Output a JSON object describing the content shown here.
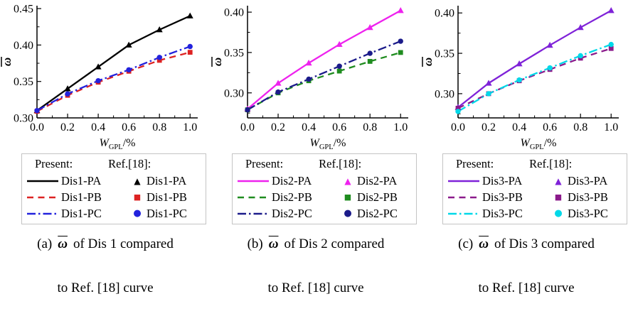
{
  "chart_data": [
    {
      "type": "line",
      "panel": "a",
      "x": [
        0.0,
        0.2,
        0.4,
        0.6,
        0.8,
        1.0
      ],
      "series": [
        {
          "name": "Dis1-PA",
          "values": [
            0.31,
            0.34,
            0.37,
            0.4,
            0.421,
            0.44
          ],
          "color": "#000000",
          "style": "solid",
          "marker": "triangle"
        },
        {
          "name": "Dis1-PB",
          "values": [
            0.309,
            0.331,
            0.349,
            0.364,
            0.379,
            0.39
          ],
          "color": "#dd2222",
          "style": "dashed",
          "marker": "square"
        },
        {
          "name": "Dis1-PC",
          "values": [
            0.31,
            0.333,
            0.351,
            0.366,
            0.383,
            0.398
          ],
          "color": "#2222dd",
          "style": "dashdot",
          "marker": "circle"
        }
      ],
      "xlabel": {
        "main": "W",
        "sub": "GPL",
        "suffix": "/%"
      },
      "ylabel": "ω",
      "xlim": [
        0,
        1.05
      ],
      "ylim": [
        0.3,
        0.454
      ],
      "xticks": [
        0.0,
        0.2,
        0.4,
        0.6,
        0.8,
        1.0
      ],
      "xtick_labels": [
        "0.0",
        "0.2",
        "0.4",
        "0.6",
        "0.8",
        "1.0"
      ],
      "yticks": [
        0.3,
        0.35,
        0.4,
        0.45
      ],
      "ytick_labels": [
        "0.30",
        "0.35",
        "0.40",
        "0.45"
      ],
      "minor_xtick_step": 0.1,
      "minor_ytick_step": 0.025,
      "grid": false,
      "legend": {
        "present_header": "Present:",
        "ref_header": "Ref.[18]:",
        "present": [
          "Dis1-PA",
          "Dis1-PB",
          "Dis1-PC"
        ],
        "ref": [
          "Dis1-PA",
          "Dis1-PB",
          "Dis1-PC"
        ]
      },
      "caption": {
        "index": "(a)",
        "symbol": "ω",
        "line1": "of Dis 1 compared",
        "line2": "to Ref. [18] curve"
      }
    },
    {
      "type": "line",
      "panel": "b",
      "x": [
        0.0,
        0.2,
        0.4,
        0.6,
        0.8,
        1.0
      ],
      "series": [
        {
          "name": "Dis2-PA",
          "values": [
            0.28,
            0.312,
            0.337,
            0.36,
            0.381,
            0.402
          ],
          "color": "#ee22ee",
          "style": "solid",
          "marker": "triangle"
        },
        {
          "name": "Dis2-PB",
          "values": [
            0.279,
            0.3,
            0.315,
            0.327,
            0.339,
            0.35
          ],
          "color": "#1f8c1f",
          "style": "dashed",
          "marker": "square"
        },
        {
          "name": "Dis2-PC",
          "values": [
            0.279,
            0.301,
            0.317,
            0.333,
            0.349,
            0.364
          ],
          "color": "#1b1b8a",
          "style": "dashdot",
          "marker": "circle"
        }
      ],
      "xlabel": {
        "main": "W",
        "sub": "GPL",
        "suffix": "/%"
      },
      "ylabel": "ω",
      "xlim": [
        0,
        1.05
      ],
      "ylim": [
        0.269,
        0.408
      ],
      "xticks": [
        0.0,
        0.2,
        0.4,
        0.6,
        0.8,
        1.0
      ],
      "xtick_labels": [
        "0.0",
        "0.2",
        "0.4",
        "0.6",
        "0.8",
        "1.0"
      ],
      "yticks": [
        0.3,
        0.35,
        0.4
      ],
      "ytick_labels": [
        "0.30",
        "0.35",
        "0.40"
      ],
      "minor_xtick_step": 0.1,
      "minor_ytick_step": 0.025,
      "grid": false,
      "legend": {
        "present_header": "Present:",
        "ref_header": "Ref.[18]:",
        "present": [
          "Dis2-PA",
          "Dis2-PB",
          "Dis2-PC"
        ],
        "ref": [
          "Dis2-PA",
          "Dis2-PB",
          "Dis2-PC"
        ]
      },
      "caption": {
        "index": "(b)",
        "symbol": "ω",
        "line1": "of Dis 2 compared",
        "line2": "to Ref. [18] curve"
      }
    },
    {
      "type": "line",
      "panel": "c",
      "x": [
        0.0,
        0.2,
        0.4,
        0.6,
        0.8,
        1.0
      ],
      "series": [
        {
          "name": "Dis3-PA",
          "values": [
            0.283,
            0.313,
            0.337,
            0.36,
            0.382,
            0.403
          ],
          "color": "#7f22d8",
          "style": "solid",
          "marker": "triangle"
        },
        {
          "name": "Dis3-PB",
          "values": [
            0.282,
            0.3,
            0.316,
            0.33,
            0.344,
            0.356
          ],
          "color": "#8b1a8b",
          "style": "dashed",
          "marker": "square"
        },
        {
          "name": "Dis3-PC",
          "values": [
            0.278,
            0.3,
            0.317,
            0.332,
            0.347,
            0.361
          ],
          "color": "#00d8e8",
          "style": "dashdot",
          "marker": "circle"
        }
      ],
      "xlabel": {
        "main": "W",
        "sub": "GPL",
        "suffix": "/%"
      },
      "ylabel": "ω",
      "xlim": [
        0,
        1.05
      ],
      "ylim": [
        0.27,
        0.409
      ],
      "xticks": [
        0.0,
        0.2,
        0.4,
        0.6,
        0.8,
        1.0
      ],
      "xtick_labels": [
        "0.0",
        "0.2",
        "0.4",
        "0.6",
        "0.8",
        "1.0"
      ],
      "yticks": [
        0.3,
        0.35,
        0.4
      ],
      "ytick_labels": [
        "0.30",
        "0.35",
        "0.40"
      ],
      "minor_xtick_step": 0.1,
      "minor_ytick_step": 0.025,
      "grid": false,
      "legend": {
        "present_header": "Present:",
        "ref_header": "Ref.[18]:",
        "present": [
          "Dis3-PA",
          "Dis3-PB",
          "Dis3-PC"
        ],
        "ref": [
          "Dis3-PA",
          "Dis3-PB",
          "Dis3-PC"
        ]
      },
      "caption": {
        "index": "(c)",
        "symbol": "ω",
        "line1": "of Dis 3 compared",
        "line2": "to Ref. [18] curve"
      }
    }
  ]
}
